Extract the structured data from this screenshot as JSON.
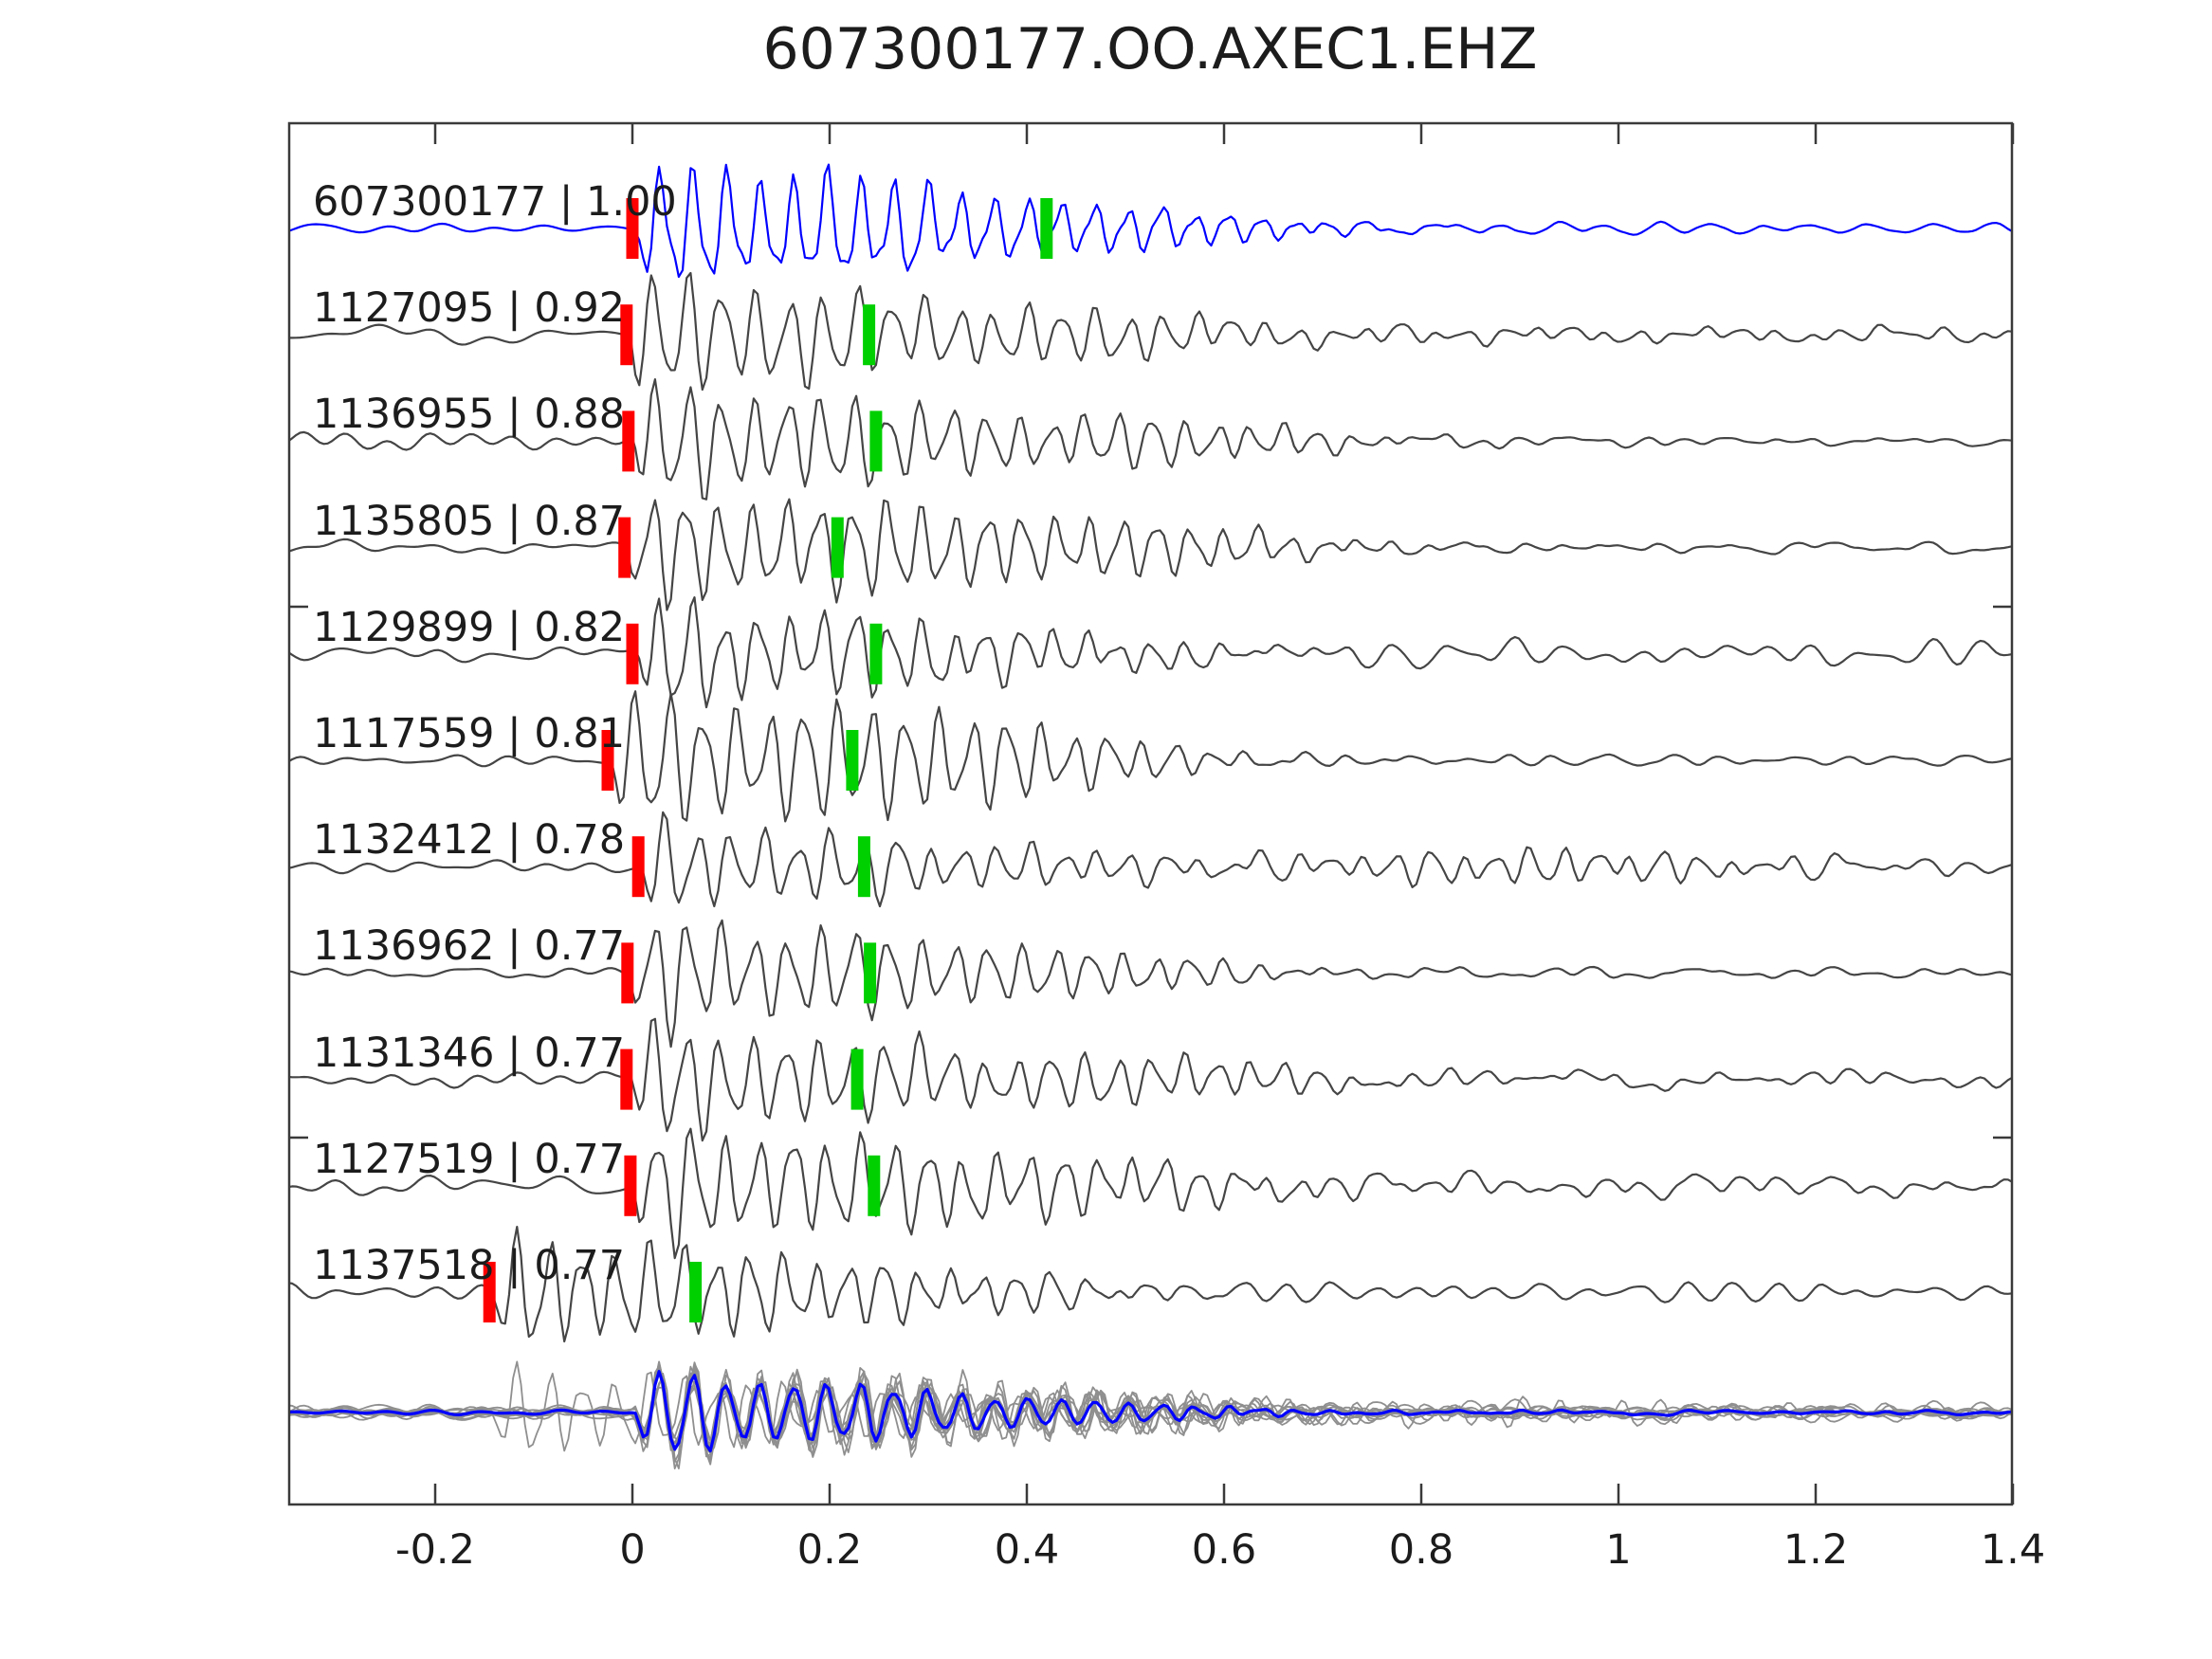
{
  "title": "607300177.OO.AXEC1.EHZ",
  "chart_data": {
    "type": "line",
    "title": "607300177.OO.AXEC1.EHZ",
    "xlabel": "",
    "ylabel": "",
    "xlim": [
      -0.349,
      1.4
    ],
    "x_ticks": [
      -0.2,
      0,
      0.2,
      0.4,
      0.6,
      0.8,
      1,
      1.2,
      1.4
    ],
    "x_tick_labels": [
      "-0.2",
      "0",
      "0.2",
      "0.4",
      "0.6",
      "0.8",
      "1",
      "1.2",
      "1.4"
    ],
    "grid": false,
    "legend": "none",
    "description": "Template-correlation seismogram section: 11 event waveforms sorted by cross-correlation value, red bar = template pick time, green bar = re-picked lag time, bottom row = aligned stack (grey members, blue mean).",
    "colors": {
      "template_trace": "#0000ff",
      "detection_trace": "#454545",
      "template_pick": "#ff0000",
      "new_pick": "#00cf00",
      "stack_member": "#8f8f8f",
      "stack_mean": "#0000ff",
      "spine": "#3a3a3a",
      "text": "#1c1c1c"
    },
    "traces": [
      {
        "id": "607300177",
        "correlation": "1.00",
        "label": "607300177 | 1.00",
        "template_pick_t": 0.0,
        "new_pick_t": 0.42,
        "is_template": true,
        "seed": 11,
        "freq": 29.5,
        "noise": 0.09,
        "onset": 0.0,
        "env": [
          [
            0.03,
            0.95,
            0.05
          ],
          [
            0.2,
            1.0,
            0.11
          ],
          [
            0.48,
            0.42,
            0.13
          ]
        ],
        "tail": 0.07,
        "tail_decay": 0.8
      },
      {
        "id": "1127095",
        "correlation": "0.92",
        "label": "1127095 | 0.92",
        "template_pick_t": -0.006,
        "new_pick_t": 0.24,
        "is_template": false,
        "seed": 22,
        "freq": 29.0,
        "noise": 0.11,
        "onset": -0.006,
        "env": [
          [
            0.025,
            1.05,
            0.045
          ],
          [
            0.18,
            0.75,
            0.09
          ],
          [
            0.45,
            0.4,
            0.12
          ]
        ],
        "tail": 0.2,
        "tail_decay": 1.6
      },
      {
        "id": "1136955",
        "correlation": "0.88",
        "label": "1136955 | 0.88",
        "template_pick_t": -0.004,
        "new_pick_t": 0.247,
        "is_template": false,
        "seed": 33,
        "freq": 29.8,
        "noise": 0.1,
        "onset": -0.004,
        "env": [
          [
            0.03,
            1.0,
            0.05
          ],
          [
            0.2,
            0.8,
            0.1
          ],
          [
            0.5,
            0.45,
            0.14
          ]
        ],
        "tail": 0.1,
        "tail_decay": 0.9
      },
      {
        "id": "1135805",
        "correlation": "0.87",
        "label": "1135805 | 0.87",
        "template_pick_t": -0.008,
        "new_pick_t": 0.208,
        "is_template": false,
        "seed": 44,
        "freq": 29.3,
        "noise": 0.1,
        "onset": -0.008,
        "env": [
          [
            0.03,
            0.95,
            0.05
          ],
          [
            0.22,
            0.85,
            0.11
          ],
          [
            0.5,
            0.5,
            0.13
          ]
        ],
        "tail": 0.1,
        "tail_decay": 0.9
      },
      {
        "id": "1129899",
        "correlation": "0.82",
        "label": "1129899 | 0.82",
        "template_pick_t": 0.0,
        "new_pick_t": 0.247,
        "is_template": false,
        "seed": 55,
        "freq": 30.0,
        "noise": 0.16,
        "onset": 0.0,
        "env": [
          [
            0.03,
            1.0,
            0.05
          ],
          [
            0.2,
            0.7,
            0.09
          ],
          [
            0.42,
            0.35,
            0.12
          ]
        ],
        "tail": 0.09,
        "tail_decay": 0.8
      },
      {
        "id": "1117559",
        "correlation": "0.81",
        "label": "1117559 | 0.81",
        "template_pick_t": -0.025,
        "new_pick_t": 0.223,
        "is_template": false,
        "seed": 66,
        "freq": 29.2,
        "noise": 0.1,
        "onset": -0.025,
        "env": [
          [
            0.03,
            0.95,
            0.05
          ],
          [
            0.2,
            0.95,
            0.12
          ],
          [
            0.42,
            0.55,
            0.12
          ]
        ],
        "tail": 0.1,
        "tail_decay": 0.8
      },
      {
        "id": "1132412",
        "correlation": "0.78",
        "label": "1132412 | 0.78",
        "template_pick_t": 0.006,
        "new_pick_t": 0.235,
        "is_template": false,
        "seed": 77,
        "freq": 29.6,
        "noise": 0.12,
        "onset": 0.006,
        "env": [
          [
            0.025,
            0.92,
            0.04
          ],
          [
            0.18,
            0.6,
            0.08
          ],
          [
            0.4,
            0.3,
            0.1
          ],
          [
            0.9,
            0.28,
            0.18
          ]
        ],
        "tail": 0.09,
        "tail_decay": 1.4
      },
      {
        "id": "1136962",
        "correlation": "0.77",
        "label": "1136962 | 0.77",
        "template_pick_t": -0.005,
        "new_pick_t": 0.241,
        "is_template": false,
        "seed": 88,
        "freq": 29.4,
        "noise": 0.1,
        "onset": -0.005,
        "env": [
          [
            0.03,
            1.0,
            0.05
          ],
          [
            0.2,
            0.75,
            0.1
          ],
          [
            0.45,
            0.4,
            0.12
          ]
        ],
        "tail": 0.1,
        "tail_decay": 0.9
      },
      {
        "id": "1131346",
        "correlation": "0.77",
        "label": "1131346 | 0.77",
        "template_pick_t": -0.006,
        "new_pick_t": 0.228,
        "is_template": false,
        "seed": 99,
        "freq": 29.7,
        "noise": 0.11,
        "onset": -0.006,
        "env": [
          [
            0.03,
            0.95,
            0.05
          ],
          [
            0.2,
            0.7,
            0.1
          ],
          [
            0.5,
            0.4,
            0.13
          ]
        ],
        "tail": 0.14,
        "tail_decay": 1.5
      },
      {
        "id": "1127519",
        "correlation": "0.77",
        "label": "1127519 | 0.77",
        "template_pick_t": -0.002,
        "new_pick_t": 0.245,
        "is_template": false,
        "seed": 110,
        "freq": 29.1,
        "noise": 0.15,
        "onset": -0.002,
        "env": [
          [
            0.03,
            1.0,
            0.05
          ],
          [
            0.2,
            0.75,
            0.1
          ],
          [
            0.45,
            0.45,
            0.13
          ]
        ],
        "tail": 0.16,
        "tail_decay": 1.5
      },
      {
        "id": "1137518",
        "correlation": "0.77",
        "label": "1137518 | 0.77",
        "template_pick_t": -0.145,
        "new_pick_t": 0.064,
        "is_template": false,
        "seed": 121,
        "freq": 29.5,
        "noise": 0.14,
        "onset": -0.145,
        "env": [
          [
            0.03,
            0.95,
            0.05
          ],
          [
            0.2,
            0.8,
            0.1
          ],
          [
            0.45,
            0.4,
            0.12
          ]
        ],
        "tail": 0.1,
        "tail_decay": 0.9
      }
    ],
    "stack": {
      "member_trace_ids": [
        "1127095",
        "1136955",
        "1135805",
        "1129899",
        "1117559",
        "1132412",
        "1136962",
        "1131346",
        "1127519",
        "1137518"
      ],
      "aligned_onset": 0.0,
      "outlier_trace_id": "1137518",
      "outlier_onset": -0.145,
      "amp_scale": 0.78,
      "mean_is_average_of_aligned_members": true
    }
  }
}
